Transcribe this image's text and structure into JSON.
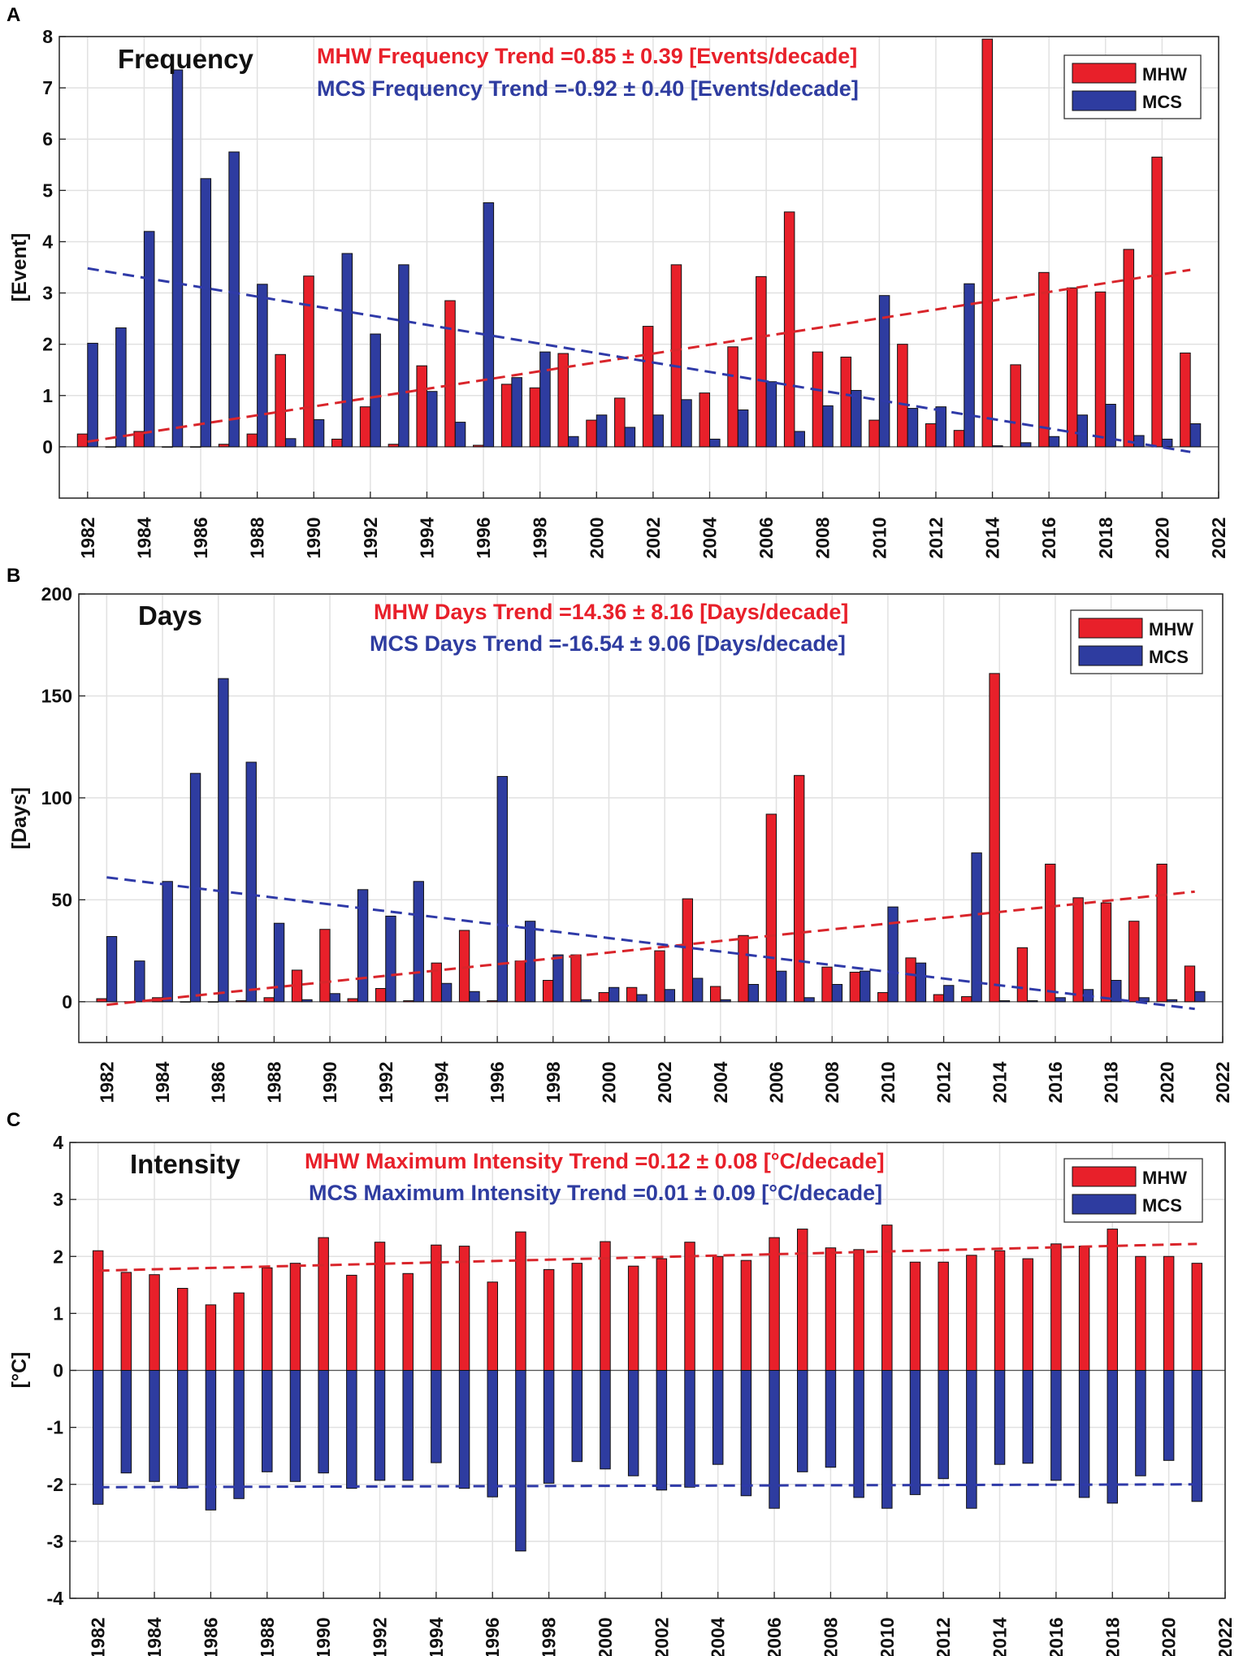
{
  "colors": {
    "mhw": "#e8202a",
    "mcs": "#2e3ca0",
    "mhw_trend": "#d9252b",
    "mcs_trend": "#2f3aa8"
  },
  "chart_data": [
    {
      "panel_label": "A",
      "type": "bar",
      "title": "Frequency",
      "ylabel": "[Event]",
      "xlabel": "",
      "ylim": [
        -1,
        8
      ],
      "yticks": [
        "0",
        "1",
        "2",
        "3",
        "4",
        "5",
        "6",
        "7",
        "8"
      ],
      "xlim": [
        1981,
        2022
      ],
      "xticks": [
        "1982",
        "1984",
        "1986",
        "1988",
        "1990",
        "1992",
        "1994",
        "1996",
        "1998",
        "2000",
        "2002",
        "2004",
        "2006",
        "2008",
        "2010",
        "2012",
        "2014",
        "2016",
        "2018",
        "2020",
        "2022"
      ],
      "categories": [
        "1982",
        "1983",
        "1984",
        "1985",
        "1986",
        "1987",
        "1988",
        "1989",
        "1990",
        "1991",
        "1992",
        "1993",
        "1994",
        "1995",
        "1996",
        "1997",
        "1998",
        "1999",
        "2000",
        "2001",
        "2002",
        "2003",
        "2004",
        "2005",
        "2006",
        "2007",
        "2008",
        "2009",
        "2010",
        "2011",
        "2012",
        "2013",
        "2014",
        "2015",
        "2016",
        "2017",
        "2018",
        "2019",
        "2020",
        "2021"
      ],
      "series": [
        {
          "name": "MHW",
          "values": [
            0.25,
            0.0,
            0.3,
            0.0,
            0.0,
            0.05,
            0.25,
            1.8,
            3.33,
            0.15,
            0.78,
            0.05,
            1.58,
            2.85,
            0.03,
            1.22,
            1.15,
            1.82,
            0.52,
            0.95,
            2.35,
            3.55,
            1.05,
            1.95,
            3.32,
            4.58,
            1.85,
            1.75,
            0.52,
            2.0,
            0.45,
            0.32,
            7.95,
            1.6,
            3.4,
            3.1,
            3.02,
            3.85,
            5.65,
            1.83
          ]
        },
        {
          "name": "MCS",
          "values": [
            2.02,
            2.32,
            4.2,
            7.35,
            5.23,
            5.75,
            3.17,
            0.16,
            0.53,
            3.77,
            2.2,
            3.55,
            1.08,
            0.48,
            4.76,
            1.35,
            1.85,
            0.2,
            0.62,
            0.38,
            0.62,
            0.92,
            0.15,
            0.72,
            1.27,
            0.3,
            0.8,
            1.1,
            2.95,
            0.75,
            0.78,
            3.18,
            0.02,
            0.08,
            0.2,
            0.62,
            0.83,
            0.22,
            0.15,
            0.45
          ]
        }
      ],
      "trends": [
        {
          "name": "MHW",
          "x": [
            1982,
            2021
          ],
          "y": [
            0.1,
            3.45
          ]
        },
        {
          "name": "MCS",
          "x": [
            1982,
            2021
          ],
          "y": [
            3.48,
            -0.1
          ]
        }
      ],
      "annotations": {
        "mhw": "MHW Frequency Trend =0.85 ± 0.39 [Events/decade]",
        "mcs": "MCS Frequency Trend =-0.92 ± 0.40 [Events/decade]"
      },
      "legend": [
        "MHW",
        "MCS"
      ],
      "legend_position": "top-right",
      "grid": true
    },
    {
      "panel_label": "B",
      "type": "bar",
      "title": "Days",
      "ylabel": "[Days]",
      "xlabel": "",
      "ylim": [
        -20,
        200
      ],
      "yticks": [
        "0",
        "50",
        "100",
        "150",
        "200"
      ],
      "xlim": [
        1981,
        2022
      ],
      "xticks": [
        "1982",
        "1984",
        "1986",
        "1988",
        "1990",
        "1992",
        "1994",
        "1996",
        "1998",
        "2000",
        "2002",
        "2004",
        "2006",
        "2008",
        "2010",
        "2012",
        "2014",
        "2016",
        "2018",
        "2020",
        "2022"
      ],
      "categories": [
        "1982",
        "1983",
        "1984",
        "1985",
        "1986",
        "1987",
        "1988",
        "1989",
        "1990",
        "1991",
        "1992",
        "1993",
        "1994",
        "1995",
        "1996",
        "1997",
        "1998",
        "1999",
        "2000",
        "2001",
        "2002",
        "2003",
        "2004",
        "2005",
        "2006",
        "2007",
        "2008",
        "2009",
        "2010",
        "2011",
        "2012",
        "2013",
        "2014",
        "2015",
        "2016",
        "2017",
        "2018",
        "2019",
        "2020",
        "2021"
      ],
      "series": [
        {
          "name": "MHW",
          "values": [
            1.5,
            0,
            2,
            0,
            0,
            0.5,
            2,
            15.5,
            35.5,
            1.5,
            6.5,
            0.5,
            19,
            35,
            0.5,
            20,
            10.5,
            23,
            4.5,
            7,
            25,
            50.5,
            7.5,
            32.5,
            92,
            111,
            17,
            14.5,
            4.5,
            21.5,
            3.5,
            2.5,
            161,
            26.5,
            67.5,
            51,
            48.5,
            39.5,
            67.5,
            17.5
          ]
        },
        {
          "name": "MCS",
          "values": [
            32,
            20,
            59,
            112,
            158.5,
            117.5,
            38.5,
            1,
            4,
            55,
            42,
            59,
            9,
            5,
            110.5,
            39.5,
            23,
            1,
            7,
            3.5,
            6,
            11.5,
            1,
            8.5,
            15,
            2,
            8.5,
            15,
            46.5,
            19,
            8,
            73,
            0.5,
            0.5,
            2,
            6,
            10.5,
            2,
            1,
            5
          ]
        }
      ],
      "trends": [
        {
          "name": "MHW",
          "x": [
            1982,
            2021
          ],
          "y": [
            -1.5,
            54
          ]
        },
        {
          "name": "MCS",
          "x": [
            1982,
            2021
          ],
          "y": [
            61,
            -3.5
          ]
        }
      ],
      "annotations": {
        "mhw": "MHW Days Trend =14.36 ± 8.16 [Days/decade]",
        "mcs": "MCS Days Trend =-16.54 ± 9.06 [Days/decade]"
      },
      "legend": [
        "MHW",
        "MCS"
      ],
      "legend_position": "top-right",
      "grid": true
    },
    {
      "panel_label": "C",
      "type": "bar",
      "title": "Intensity",
      "ylabel": "[°C]",
      "xlabel": "",
      "ylim": [
        -4,
        4
      ],
      "yticks": [
        "-4",
        "-3",
        "-2",
        "-1",
        "0",
        "1",
        "2",
        "3",
        "4"
      ],
      "xlim": [
        1981,
        2022
      ],
      "xticks": [
        "1982",
        "1984",
        "1986",
        "1988",
        "1990",
        "1992",
        "1994",
        "1996",
        "1998",
        "2000",
        "2002",
        "2004",
        "2006",
        "2008",
        "2010",
        "2012",
        "2014",
        "2016",
        "2018",
        "2020",
        "2022"
      ],
      "categories": [
        "1982",
        "1983",
        "1984",
        "1985",
        "1986",
        "1987",
        "1988",
        "1989",
        "1990",
        "1991",
        "1992",
        "1993",
        "1994",
        "1995",
        "1996",
        "1997",
        "1998",
        "1999",
        "2000",
        "2001",
        "2002",
        "2003",
        "2004",
        "2005",
        "2006",
        "2007",
        "2008",
        "2009",
        "2010",
        "2011",
        "2012",
        "2013",
        "2014",
        "2015",
        "2016",
        "2017",
        "2018",
        "2019",
        "2020",
        "2021"
      ],
      "series": [
        {
          "name": "MHW",
          "values": [
            2.1,
            1.72,
            1.68,
            1.44,
            1.15,
            1.36,
            1.8,
            1.88,
            2.33,
            1.67,
            2.25,
            1.7,
            2.2,
            2.18,
            1.55,
            2.43,
            1.77,
            1.88,
            2.26,
            1.83,
            1.96,
            2.25,
            2.0,
            1.93,
            2.33,
            2.48,
            2.15,
            2.12,
            2.55,
            1.9,
            1.9,
            2.02,
            2.1,
            1.96,
            2.22,
            2.18,
            2.48,
            2.0,
            2.0,
            1.88
          ]
        },
        {
          "name": "MCS",
          "values": [
            -2.35,
            -1.8,
            -1.95,
            -2.07,
            -2.45,
            -2.25,
            -1.78,
            -1.95,
            -1.8,
            -2.07,
            -1.93,
            -1.93,
            -1.62,
            -2.07,
            -2.22,
            -3.17,
            -1.98,
            -1.6,
            -1.73,
            -1.85,
            -2.1,
            -2.05,
            -1.65,
            -2.2,
            -2.42,
            -1.78,
            -1.7,
            -2.23,
            -2.42,
            -2.18,
            -1.9,
            -2.42,
            -1.65,
            -1.63,
            -1.93,
            -2.23,
            -2.33,
            -1.85,
            -1.58,
            -2.3
          ]
        }
      ],
      "trends": [
        {
          "name": "MHW",
          "x": [
            1982,
            2021
          ],
          "y": [
            1.75,
            2.22
          ]
        },
        {
          "name": "MCS",
          "x": [
            1982,
            2021
          ],
          "y": [
            -2.05,
            -2.0
          ]
        }
      ],
      "annotations": {
        "mhw": "MHW Maximum Intensity Trend =0.12 ± 0.08 [°C/decade]",
        "mcs": "MCS Maximum Intensity Trend =0.01 ± 0.09 [°C/decade]"
      },
      "legend": [
        "MHW",
        "MCS"
      ],
      "legend_position": "top-right",
      "grid": true
    }
  ]
}
